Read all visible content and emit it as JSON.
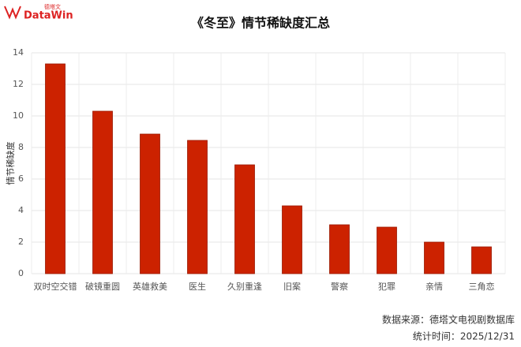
{
  "logo": {
    "name": "DataWin",
    "cn": "德塔文"
  },
  "chart_data": {
    "type": "bar",
    "title": "《冬至》情节稀缺度汇总",
    "ylabel": "情节稀缺度",
    "categories": [
      "双时空交错",
      "破镜重圆",
      "英雄救美",
      "医生",
      "久别重逢",
      "旧案",
      "警察",
      "犯罪",
      "亲情",
      "三角恋"
    ],
    "values": [
      13.3,
      10.3,
      8.85,
      8.45,
      6.9,
      4.3,
      3.1,
      2.95,
      2.0,
      1.7
    ],
    "color": "#cc2200",
    "ylim": [
      0,
      14
    ],
    "yticks": [
      0,
      2,
      4,
      6,
      8,
      10,
      12,
      14
    ],
    "grid": true,
    "notes": [
      "数据来源：德塔文电视剧数据库",
      "统计时间：2025/12/31"
    ]
  }
}
